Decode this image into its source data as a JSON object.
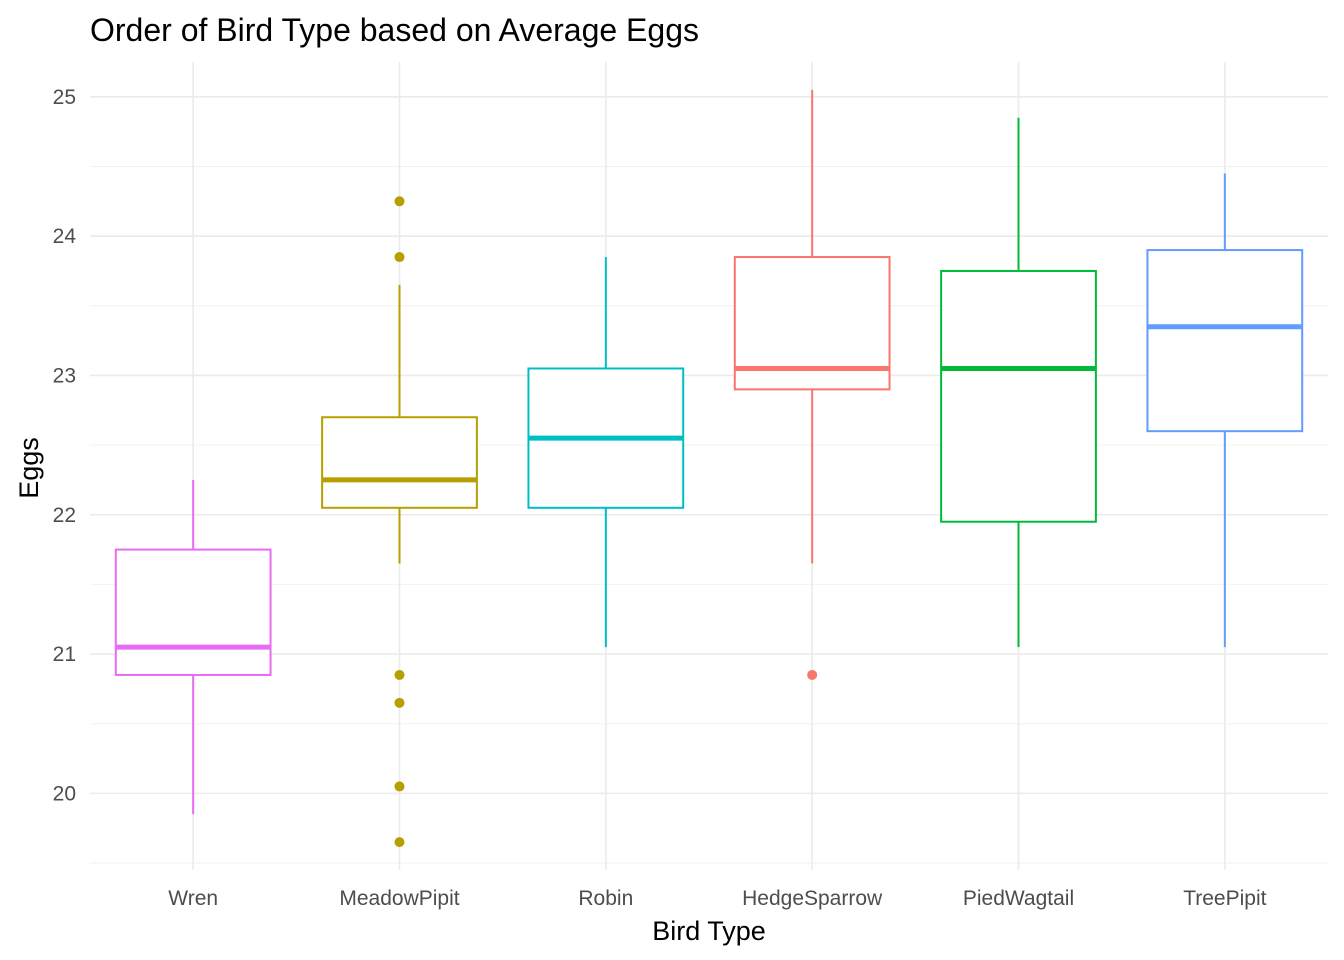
{
  "chart_data": {
    "type": "boxplot",
    "title": "Order of Bird Type based on Average Eggs",
    "xlabel": "Bird Type",
    "ylabel": "Eggs",
    "ylim": [
      19.45,
      25.25
    ],
    "yticks": [
      20,
      21,
      22,
      23,
      24,
      25
    ],
    "grid": true,
    "legend": "none",
    "categories": [
      "Wren",
      "MeadowPipit",
      "Robin",
      "HedgeSparrow",
      "PiedWagtail",
      "TreePipit"
    ],
    "series": [
      {
        "category": "Wren",
        "color": "#E76BF3",
        "whisker_low": 19.85,
        "q1": 20.85,
        "median": 21.05,
        "q3": 21.75,
        "whisker_high": 22.25,
        "outliers": []
      },
      {
        "category": "MeadowPipit",
        "color": "#B79F00",
        "whisker_low": 21.65,
        "q1": 22.05,
        "median": 22.25,
        "q3": 22.7,
        "whisker_high": 23.65,
        "outliers": [
          24.25,
          23.85,
          20.85,
          20.65,
          20.05,
          19.65
        ]
      },
      {
        "category": "Robin",
        "color": "#00BFC4",
        "whisker_low": 21.05,
        "q1": 22.05,
        "median": 22.55,
        "q3": 23.05,
        "whisker_high": 23.85,
        "outliers": []
      },
      {
        "category": "HedgeSparrow",
        "color": "#F8766D",
        "whisker_low": 21.65,
        "q1": 22.9,
        "median": 23.05,
        "q3": 23.85,
        "whisker_high": 25.05,
        "outliers": [
          20.85
        ]
      },
      {
        "category": "PiedWagtail",
        "color": "#00BA38",
        "whisker_low": 21.05,
        "q1": 21.95,
        "median": 23.05,
        "q3": 23.75,
        "whisker_high": 24.85,
        "outliers": []
      },
      {
        "category": "TreePipit",
        "color": "#619CFF",
        "whisker_low": 21.05,
        "q1": 22.6,
        "median": 23.35,
        "q3": 23.9,
        "whisker_high": 24.45,
        "outliers": []
      }
    ]
  }
}
